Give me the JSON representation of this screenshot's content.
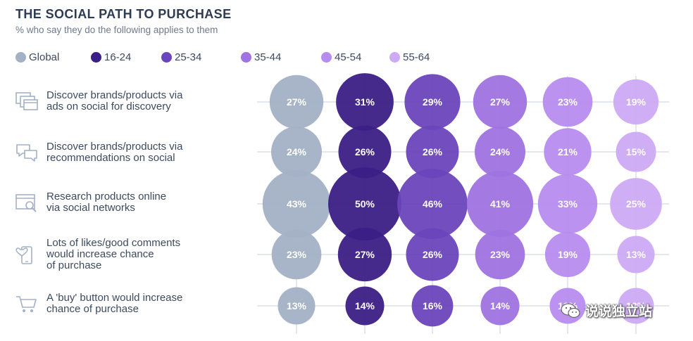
{
  "chart_data": {
    "type": "bubble-grid",
    "title": "THE SOCIAL PATH TO PURCHASE",
    "subtitle": "% who say they do the following applies to them",
    "series": [
      {
        "name": "Global",
        "color": "#a3b1c6"
      },
      {
        "name": "16-24",
        "color": "#3b1f86"
      },
      {
        "name": "25-34",
        "color": "#6a45bb"
      },
      {
        "name": "35-44",
        "color": "#9f73e0"
      },
      {
        "name": "45-54",
        "color": "#b78cef"
      },
      {
        "name": "55-64",
        "color": "#cdaaf6"
      }
    ],
    "categories": [
      {
        "label": "Discover brands/products via\nads on social for discovery",
        "icon": "ads-windows-icon",
        "values": [
          27,
          31,
          29,
          27,
          23,
          19
        ]
      },
      {
        "label": "Discover brands/products via\nrecommendations on social",
        "icon": "chat-bubbles-icon",
        "values": [
          24,
          26,
          26,
          24,
          21,
          15
        ]
      },
      {
        "label": "Research products online\nvia social networks",
        "icon": "browser-search-icon",
        "values": [
          43,
          50,
          46,
          41,
          33,
          25
        ]
      },
      {
        "label": "Lots of likes/good comments\nwould increase chance\nof purchase",
        "icon": "phone-heart-icon",
        "values": [
          23,
          27,
          26,
          23,
          19,
          13
        ]
      },
      {
        "label": "A 'buy' button would increase\nchance of purchase",
        "icon": "shopping-cart-icon",
        "values": [
          13,
          14,
          16,
          14,
          12,
          12
        ]
      }
    ],
    "value_suffix": "%"
  },
  "watermark": {
    "text": "说说独立站"
  }
}
